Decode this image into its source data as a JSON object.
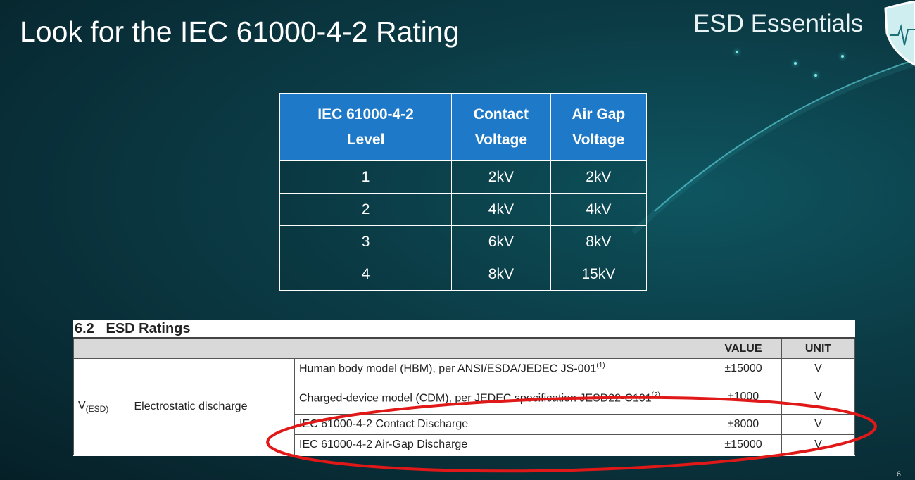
{
  "slide": {
    "title": "Look for the IEC 61000-4-2 Rating",
    "brand": "ESD Essentials",
    "page_number": "6",
    "accent": "#1e7ac8",
    "highlight_color": "#e01818"
  },
  "iec_table": {
    "headers": [
      [
        "IEC 61000-4-2",
        "Level"
      ],
      [
        "Contact",
        "Voltage"
      ],
      [
        "Air Gap",
        "Voltage"
      ]
    ],
    "rows": [
      [
        "1",
        "2kV",
        "2kV"
      ],
      [
        "2",
        "4kV",
        "4kV"
      ],
      [
        "3",
        "6kV",
        "8kV"
      ],
      [
        "4",
        "8kV",
        "15kV"
      ]
    ]
  },
  "esd_ratings": {
    "section": "6.2",
    "title": "ESD Ratings",
    "col_value": "VALUE",
    "col_unit": "UNIT",
    "symbol": "V",
    "symbol_sub": "(ESD)",
    "parameter": "Electrostatic discharge",
    "rows": [
      {
        "condition": "Human body model (HBM), per ANSI/ESDA/JEDEC JS-001",
        "note": "(1)",
        "value": "±15000",
        "unit": "V"
      },
      {
        "condition": "Charged-device model (CDM), per JEDEC specification JESD22-C101",
        "note": "(2)",
        "value": "±1000",
        "unit": "V"
      },
      {
        "condition": "IEC 61000-4-2 Contact Discharge",
        "note": "",
        "value": "±8000",
        "unit": "V"
      },
      {
        "condition": "IEC 61000-4-2 Air-Gap Discharge",
        "note": "",
        "value": "±15000",
        "unit": "V"
      }
    ]
  }
}
